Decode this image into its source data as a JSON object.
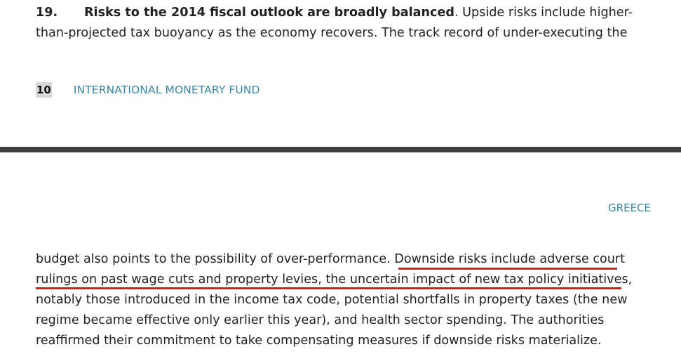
{
  "top_page": {
    "paragraph": {
      "number": "19.",
      "lead": "Risks to the 2014 fiscal outlook are broadly balanced",
      "line1_rest": ". Upside risks include higher-",
      "line2": "than-projected tax buoyancy as the economy recovers. The track record of under-executing the"
    },
    "footer": {
      "page_number": "10",
      "organization": "INTERNATIONAL MONETARY FUND"
    }
  },
  "bottom_page": {
    "header": "GREECE",
    "lines": [
      "budget also points to the possibility of over-performance. Downside risks include adverse court",
      "rulings on past wage cuts and property levies, the uncertain impact of new tax policy initiatives,",
      "notably those introduced in the income tax code, potential shortfalls in property taxes (the new",
      "regime became effective only earlier this year), and health sector spending. The authorities",
      "reaffirmed their commitment to take compensating measures if downside risks materialize."
    ]
  },
  "colors": {
    "accent": "#3a86a3",
    "highlight_underline": "#e0161f",
    "divider": "#3f3f3f"
  }
}
